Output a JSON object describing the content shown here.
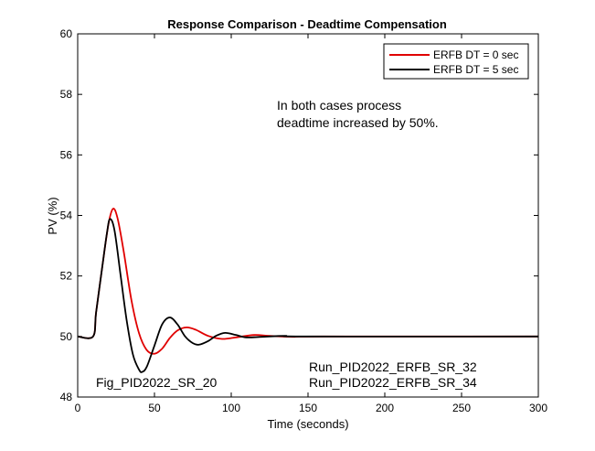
{
  "chart_data": {
    "type": "line",
    "title": "Response Comparison - Deadtime Compensation",
    "xlabel": "Time (seconds)",
    "ylabel": "PV (%)",
    "xlim": [
      0,
      300
    ],
    "ylim": [
      48,
      60
    ],
    "xticks": [
      0,
      50,
      100,
      150,
      200,
      250,
      300
    ],
    "yticks": [
      48,
      50,
      52,
      54,
      56,
      58,
      60
    ],
    "grid": false,
    "legend_placement": "top-right",
    "series": [
      {
        "name": "ERFB DT = 0 sec",
        "color": "#e00000",
        "points": [
          [
            0,
            50
          ],
          [
            10,
            50
          ],
          [
            12,
            50.8
          ],
          [
            16,
            52.3
          ],
          [
            20,
            53.7
          ],
          [
            23,
            54.22
          ],
          [
            26,
            53.9
          ],
          [
            30,
            52.8
          ],
          [
            35,
            51.2
          ],
          [
            40,
            50.1
          ],
          [
            45,
            49.55
          ],
          [
            50,
            49.43
          ],
          [
            55,
            49.6
          ],
          [
            60,
            49.95
          ],
          [
            65,
            50.2
          ],
          [
            71,
            50.3
          ],
          [
            77,
            50.22
          ],
          [
            85,
            50.02
          ],
          [
            94,
            49.92
          ],
          [
            103,
            49.97
          ],
          [
            115,
            50.05
          ],
          [
            125,
            50.02
          ],
          [
            140,
            49.99
          ],
          [
            160,
            50
          ],
          [
            300,
            50
          ]
        ]
      },
      {
        "name": "ERFB DT = 5 sec",
        "color": "#000000",
        "points": [
          [
            0,
            50
          ],
          [
            10,
            50
          ],
          [
            12,
            50.8
          ],
          [
            16,
            52.3
          ],
          [
            19,
            53.4
          ],
          [
            21,
            53.88
          ],
          [
            24,
            53.5
          ],
          [
            28,
            52.0
          ],
          [
            32,
            50.5
          ],
          [
            36,
            49.4
          ],
          [
            40,
            48.9
          ],
          [
            42,
            48.83
          ],
          [
            45,
            49.0
          ],
          [
            50,
            49.7
          ],
          [
            55,
            50.4
          ],
          [
            60,
            50.63
          ],
          [
            65,
            50.4
          ],
          [
            70,
            50.0
          ],
          [
            75,
            49.78
          ],
          [
            79,
            49.73
          ],
          [
            85,
            49.85
          ],
          [
            90,
            50.02
          ],
          [
            96,
            50.12
          ],
          [
            103,
            50.05
          ],
          [
            110,
            49.97
          ],
          [
            120,
            49.99
          ],
          [
            135,
            50.02
          ],
          [
            150,
            50
          ],
          [
            300,
            50
          ]
        ]
      }
    ],
    "annotations": {
      "note_line1": "In both cases process",
      "note_line2": "deadtime increased by 50%.",
      "fig_id": "Fig_PID2022_SR_20",
      "run1": "Run_PID2022_ERFB_SR_32",
      "run2": "Run_PID2022_ERFB_SR_34"
    }
  }
}
